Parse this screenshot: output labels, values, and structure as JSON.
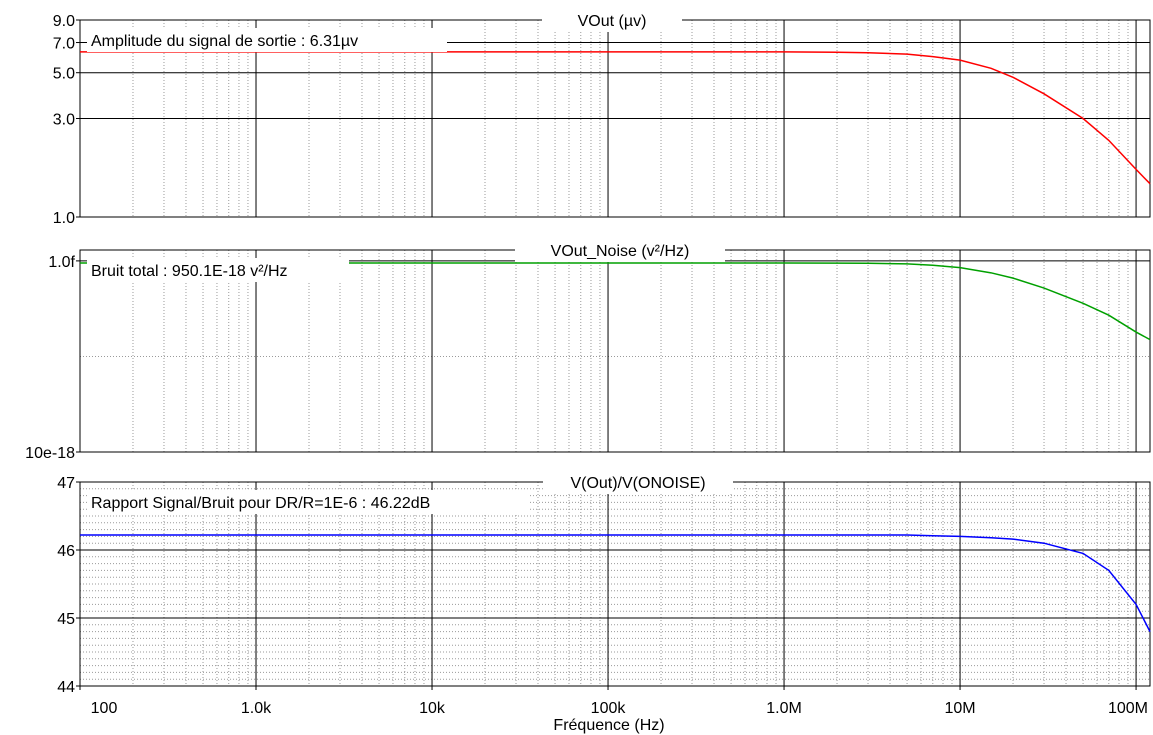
{
  "x_axis": {
    "label": "Fréquence (Hz)",
    "ticks": [
      {
        "value": 100,
        "label": "100"
      },
      {
        "value": 1000,
        "label": "1.0k"
      },
      {
        "value": 10000,
        "label": "10k"
      },
      {
        "value": 100000,
        "label": "100k"
      },
      {
        "value": 1000000,
        "label": "1.0M"
      },
      {
        "value": 10000000,
        "label": "10M"
      },
      {
        "value": 100000000,
        "label": "100M"
      }
    ],
    "range": [
      100,
      120000000
    ],
    "scale": "log"
  },
  "colors": {
    "vout": "#ff0000",
    "noise": "#00a000",
    "snr": "#0000ff",
    "grid_major": "#000000",
    "grid_minor": "#9a9a9a"
  },
  "chart_data": [
    {
      "type": "line",
      "title": "VOut (µv)",
      "annotation": "Amplitude du signal de sortie : 6.31µv",
      "y_scale": "log",
      "ylim": [
        1.0,
        9.0
      ],
      "ytick_labels": [
        {
          "value": 9.0,
          "label": "9.0"
        },
        {
          "value": 7.0,
          "label": "7.0"
        },
        {
          "value": 5.0,
          "label": "5.0"
        },
        {
          "value": 3.0,
          "label": "3.0"
        },
        {
          "value": 1.0,
          "label": "1.0"
        }
      ],
      "grid_major_y": [
        9.0,
        7.0,
        5.0,
        3.0,
        1.0
      ],
      "grid_minor_y": [],
      "series": [
        {
          "color_key": "vout",
          "x": [
            100,
            1000,
            10000,
            100000,
            1000000,
            2000000,
            3000000,
            5000000,
            7000000,
            10000000,
            15000000,
            20000000,
            30000000,
            50000000,
            70000000,
            100000000,
            120000000
          ],
          "y": [
            6.31,
            6.31,
            6.31,
            6.31,
            6.31,
            6.28,
            6.25,
            6.15,
            5.98,
            5.75,
            5.25,
            4.75,
            3.95,
            3.0,
            2.35,
            1.7,
            1.45
          ]
        }
      ]
    },
    {
      "type": "line",
      "title": "VOut_Noise (v²/Hz)",
      "annotation": "Bruit total : 950.1E-18 v²/Hz",
      "y_scale": "log",
      "ylim": [
        1e-17,
        1.3e-15
      ],
      "ytick_labels": [
        {
          "value": 1e-15,
          "label": "1.0f"
        },
        {
          "value": 1e-17,
          "label": "10e-18"
        }
      ],
      "grid_major_y": [
        1e-15
      ],
      "grid_minor_y": [
        1e-16
      ],
      "series": [
        {
          "color_key": "noise",
          "x": [
            100,
            1000,
            10000,
            100000,
            1000000,
            2000000,
            3000000,
            5000000,
            7000000,
            10000000,
            15000000,
            20000000,
            30000000,
            50000000,
            70000000,
            100000000,
            120000000
          ],
          "y": [
            9.5e-16,
            9.5e-16,
            9.5e-16,
            9.5e-16,
            9.5e-16,
            9.48e-16,
            9.45e-16,
            9.3e-16,
            9e-16,
            8.5e-16,
            7.5e-16,
            6.6e-16,
            5.2e-16,
            3.6e-16,
            2.7e-16,
            1.8e-16,
            1.5e-16
          ]
        }
      ]
    },
    {
      "type": "line",
      "title": "V(Out)/V(ONOISE)",
      "annotation": "Rapport Signal/Bruit pour DR/R=1E-6 : 46.22dB",
      "y_scale": "linear",
      "ylim": [
        44,
        47
      ],
      "ytick_labels": [
        {
          "value": 47,
          "label": "47"
        },
        {
          "value": 46,
          "label": "46"
        },
        {
          "value": 45,
          "label": "45"
        },
        {
          "value": 44,
          "label": "44"
        }
      ],
      "grid_major_y": [
        47,
        46,
        45,
        44
      ],
      "grid_minor_y": [
        46.9,
        46.8,
        46.7,
        46.6,
        46.5,
        46.4,
        46.3,
        46.2,
        46.1,
        45.9,
        45.8,
        45.7,
        45.6,
        45.5,
        45.4,
        45.3,
        45.2,
        45.1,
        44.9,
        44.8,
        44.7,
        44.6,
        44.5,
        44.4,
        44.3,
        44.2,
        44.1
      ],
      "series": [
        {
          "color_key": "snr",
          "x": [
            100,
            1000,
            10000,
            100000,
            1000000,
            3000000,
            5000000,
            7000000,
            10000000,
            15000000,
            20000000,
            30000000,
            50000000,
            70000000,
            100000000,
            120000000
          ],
          "y": [
            46.22,
            46.22,
            46.22,
            46.22,
            46.22,
            46.22,
            46.22,
            46.21,
            46.2,
            46.18,
            46.16,
            46.1,
            45.95,
            45.7,
            45.2,
            44.8
          ]
        }
      ]
    }
  ]
}
